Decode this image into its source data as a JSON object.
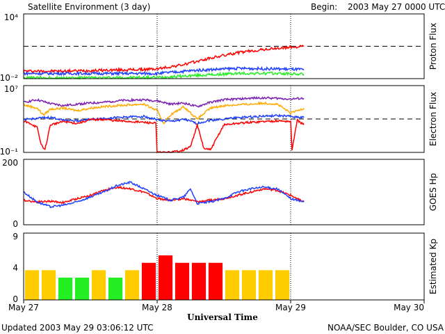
{
  "header": {
    "title": "Satellite Environment (3 day)",
    "begin_label": "Begin:",
    "begin_value": "2003 May 27 0000 UTC"
  },
  "footer": {
    "updated": "Updated 2003 May 29 03:06:12 UTC",
    "credit": "NOAA/SEC Boulder, CO USA"
  },
  "colors": {
    "red": "#ff0000",
    "blue": "#1f3fff",
    "green": "#22ee22",
    "purple": "#7a1fb0",
    "orange": "#ffaa00",
    "kp_yellow": "#ffcc00",
    "kp_green": "#22ee22",
    "kp_red": "#ff0000"
  },
  "chart_data": [
    {
      "type": "line",
      "ylabel": "Proton Flux",
      "scale": "log",
      "ylim": [
        0.01,
        10000
      ],
      "y_tick_labels": [
        "10⁴",
        "10⁻²"
      ],
      "threshold": 10,
      "series": [
        {
          "color": "red",
          "x": [
            0,
            0.3,
            0.6,
            0.9,
            1.0,
            1.2,
            1.4,
            1.6,
            1.8,
            2.0,
            2.1
          ],
          "y": [
            0.05,
            0.05,
            0.06,
            0.07,
            0.08,
            0.2,
            0.8,
            2.5,
            5,
            8,
            10
          ]
        },
        {
          "color": "blue",
          "x": [
            0,
            0.4,
            0.9,
            1.0,
            1.3,
            1.6,
            1.9,
            2.1
          ],
          "y": [
            0.03,
            0.03,
            0.03,
            0.03,
            0.06,
            0.09,
            0.08,
            0.07
          ]
        },
        {
          "color": "green",
          "x": [
            0,
            0.5,
            1.0,
            1.3,
            1.6,
            1.9,
            2.1
          ],
          "y": [
            0.012,
            0.012,
            0.013,
            0.02,
            0.03,
            0.03,
            0.025
          ]
        }
      ]
    },
    {
      "type": "line",
      "ylabel": "Electron Flux",
      "scale": "log",
      "ylim": [
        0.1,
        10000000
      ],
      "y_tick_labels": [
        "10⁷",
        "10⁻¹"
      ],
      "threshold": 1000,
      "series": [
        {
          "color": "purple",
          "x": [
            0,
            0.1,
            0.2,
            0.3,
            0.4,
            0.5,
            0.6,
            0.7,
            0.8,
            0.9,
            1.0,
            1.1,
            1.2,
            1.3,
            1.4,
            1.5,
            1.6,
            1.7,
            1.8,
            1.9,
            2.0,
            2.1
          ],
          "y": [
            100000,
            200000,
            70000,
            40000,
            60000,
            80000,
            100000,
            150000,
            180000,
            200000,
            150000,
            60000,
            80000,
            30000,
            100000,
            200000,
            250000,
            300000,
            350000,
            300000,
            250000,
            300000
          ]
        },
        {
          "color": "orange",
          "x": [
            0,
            0.1,
            0.15,
            0.2,
            0.3,
            0.4,
            0.5,
            0.6,
            0.7,
            0.8,
            0.9,
            1.0,
            1.05,
            1.1,
            1.2,
            1.3,
            1.4,
            1.5,
            1.6,
            1.7,
            1.8,
            1.9,
            2.0,
            2.1
          ],
          "y": [
            50000,
            20000,
            3000,
            15000,
            20000,
            10000,
            20000,
            30000,
            40000,
            50000,
            60000,
            10000,
            300,
            3000,
            30000,
            1000,
            20000,
            40000,
            50000,
            60000,
            80000,
            60000,
            5000,
            20000
          ]
        },
        {
          "color": "blue",
          "x": [
            0,
            0.1,
            0.2,
            0.3,
            0.4,
            0.5,
            0.6,
            0.7,
            0.8,
            0.9,
            1.0,
            1.1,
            1.2,
            1.3,
            1.4,
            1.5,
            1.6,
            1.7,
            1.8,
            1.9,
            2.0,
            2.1
          ],
          "y": [
            800,
            1200,
            1500,
            800,
            600,
            900,
            1200,
            1500,
            1800,
            2000,
            800,
            500,
            900,
            300,
            700,
            1000,
            1500,
            1800,
            2200,
            2500,
            2000,
            1500
          ]
        },
        {
          "color": "red",
          "x": [
            0,
            0.05,
            0.1,
            0.13,
            0.16,
            0.2,
            0.3,
            0.4,
            0.5,
            0.6,
            0.7,
            0.8,
            0.9,
            0.99,
            1.0,
            1.1,
            1.2,
            1.25,
            1.3,
            1.35,
            1.4,
            1.5,
            1.6,
            1.7,
            1.8,
            1.9,
            2.0,
            2.01,
            2.05,
            2.1
          ],
          "y": [
            500,
            300,
            100,
            1,
            0.2,
            200,
            500,
            300,
            800,
            900,
            600,
            500,
            400,
            300,
            0.1,
            0.1,
            0.2,
            0.5,
            200,
            0.3,
            0.2,
            200,
            300,
            400,
            500,
            600,
            500,
            0.2,
            700,
            200
          ]
        }
      ]
    },
    {
      "type": "line",
      "ylabel": "GOES Hp",
      "scale": "linear",
      "ylim": [
        0,
        200
      ],
      "y_tick_labels": [
        "200",
        "0"
      ],
      "series": [
        {
          "color": "red",
          "x": [
            0,
            0.1,
            0.2,
            0.3,
            0.4,
            0.5,
            0.6,
            0.7,
            0.8,
            0.9,
            1.0,
            1.1,
            1.2,
            1.3,
            1.4,
            1.5,
            1.6,
            1.7,
            1.8,
            1.9,
            2.0,
            2.1
          ],
          "y": [
            75,
            70,
            72,
            68,
            80,
            90,
            105,
            115,
            110,
            100,
            80,
            75,
            80,
            70,
            75,
            80,
            90,
            100,
            110,
            105,
            90,
            70
          ]
        },
        {
          "color": "blue",
          "x": [
            0,
            0.1,
            0.2,
            0.3,
            0.4,
            0.5,
            0.6,
            0.7,
            0.8,
            0.9,
            1.0,
            1.1,
            1.2,
            1.25,
            1.3,
            1.4,
            1.5,
            1.6,
            1.7,
            1.8,
            1.9,
            2.0,
            2.1
          ],
          "y": [
            100,
            70,
            55,
            60,
            70,
            85,
            100,
            120,
            130,
            110,
            90,
            75,
            85,
            110,
            65,
            70,
            80,
            100,
            110,
            115,
            110,
            80,
            70
          ]
        }
      ]
    },
    {
      "type": "bar",
      "ylabel": "Estimated Kp",
      "ylim": [
        0,
        9
      ],
      "y_tick_labels": [
        "9",
        "4",
        "0"
      ],
      "x": [
        0.0625,
        0.1875,
        0.3125,
        0.4375,
        0.5625,
        0.6875,
        0.8125,
        0.9375,
        1.0625,
        1.1875,
        1.3125,
        1.4375,
        1.5625,
        1.6875,
        1.8125,
        1.9375
      ],
      "values": [
        4,
        4,
        3,
        3,
        4,
        3,
        4,
        5,
        6,
        5,
        5,
        5,
        4,
        4,
        4,
        4
      ],
      "colors": [
        "kp_yellow",
        "kp_yellow",
        "kp_green",
        "kp_green",
        "kp_yellow",
        "kp_green",
        "kp_yellow",
        "kp_red",
        "kp_red",
        "kp_red",
        "kp_red",
        "kp_red",
        "kp_yellow",
        "kp_yellow",
        "kp_yellow",
        "kp_yellow"
      ]
    }
  ],
  "x_axis": {
    "label": "Universal Time",
    "xlim": [
      0,
      3
    ],
    "ticks": [
      0,
      1,
      2,
      3
    ],
    "tick_labels": [
      "May 27",
      "May 28",
      "May 29",
      "May 30"
    ],
    "day_lines": [
      1,
      2
    ]
  }
}
